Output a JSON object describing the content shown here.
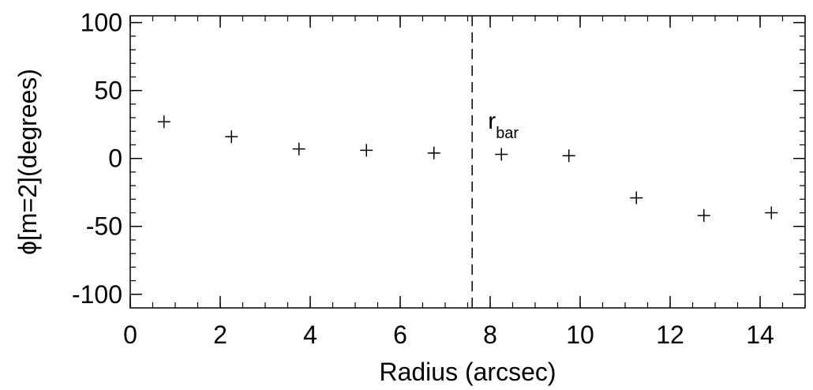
{
  "chart_data": {
    "type": "scatter",
    "xlabel": "Radius (arcsec)",
    "ylabel": "ϕ[m=2](degrees)",
    "xlim": [
      0,
      15
    ],
    "ylim": [
      -110,
      105
    ],
    "x_ticks": [
      0,
      2,
      4,
      6,
      8,
      10,
      12,
      14
    ],
    "y_ticks": [
      -100,
      -50,
      0,
      50,
      100
    ],
    "x_tick_labels": [
      "0",
      "2",
      "4",
      "6",
      "8",
      "10",
      "12",
      "14"
    ],
    "y_tick_labels": [
      "-100",
      "-50",
      "0",
      "50",
      "100"
    ],
    "grid": false,
    "marker": "plus",
    "series": [
      {
        "x": [
          0.75,
          2.25,
          3.75,
          5.25,
          6.75,
          8.25,
          9.75,
          11.25,
          12.75,
          14.25
        ],
        "y": [
          27,
          16,
          7,
          6,
          4,
          3,
          2,
          -29,
          -42,
          -40
        ]
      }
    ],
    "annotations": [
      {
        "type": "vline",
        "x": 7.6,
        "style": "dashed",
        "label": "r",
        "label_sub": "bar"
      }
    ]
  }
}
